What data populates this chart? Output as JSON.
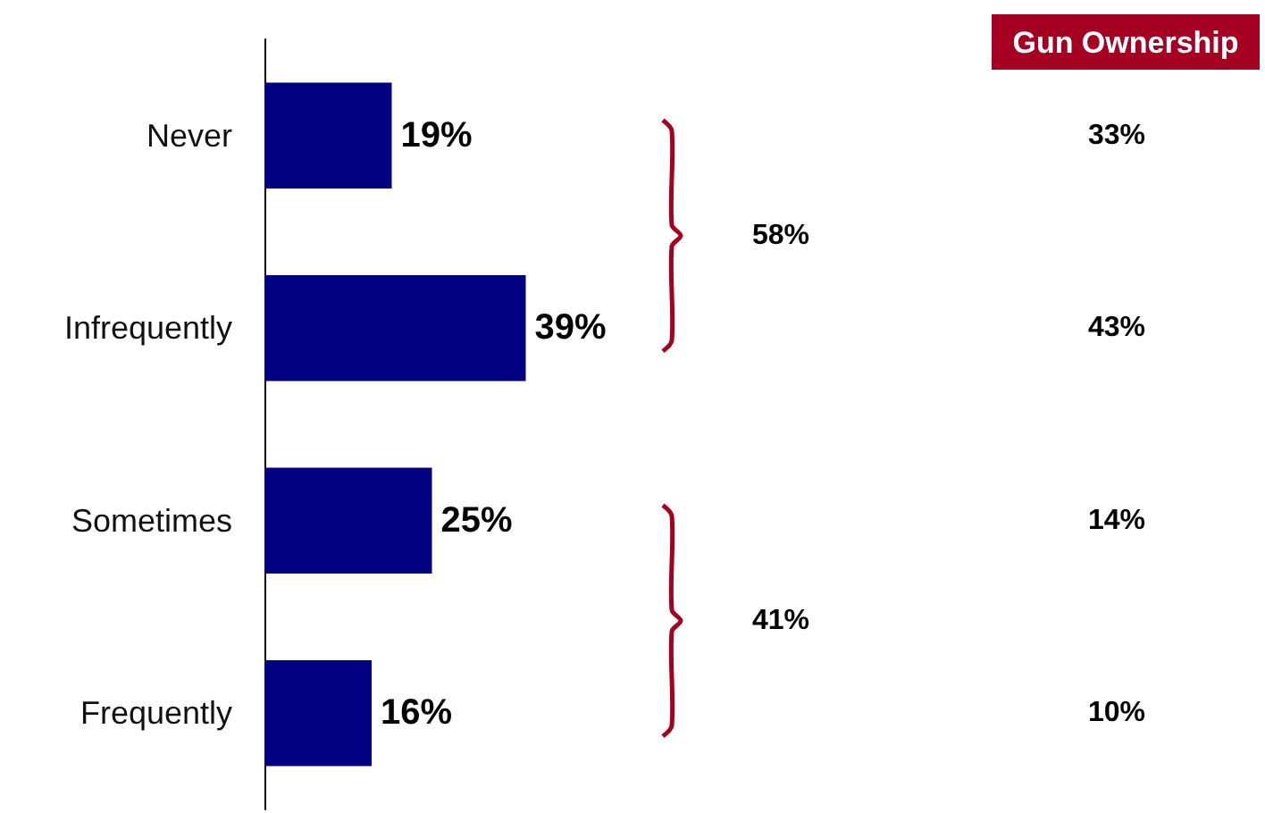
{
  "chart_data": {
    "type": "bar",
    "orientation": "horizontal",
    "categories": [
      "Never",
      "Infrequently",
      "Sometimes",
      "Frequently"
    ],
    "values": [
      19,
      39,
      25,
      16
    ],
    "color": "#000080",
    "value_labels": [
      "19%",
      "39%",
      "25%",
      "16%"
    ],
    "annotations": [
      "Gun Ownership",
      "33%",
      "43%",
      "14%",
      "10%",
      "58%",
      "41%"
    ]
  }
}
